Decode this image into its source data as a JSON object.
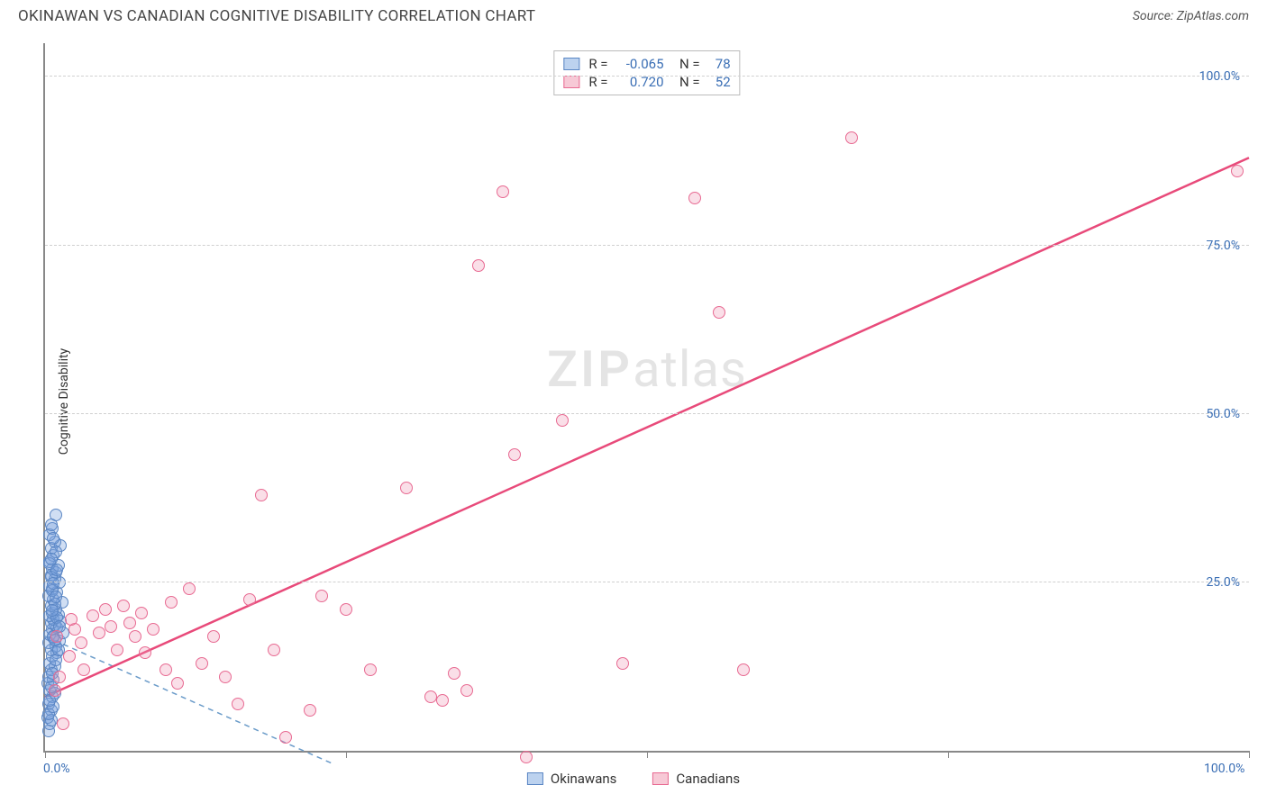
{
  "header": {
    "title": "OKINAWAN VS CANADIAN COGNITIVE DISABILITY CORRELATION CHART",
    "source": "Source: ZipAtlas.com"
  },
  "y_axis_label": "Cognitive Disability",
  "watermark": {
    "zip": "ZIP",
    "atlas": "atlas"
  },
  "chart": {
    "type": "scatter",
    "xlim": [
      0,
      100
    ],
    "ylim": [
      0,
      105
    ],
    "x_ticks": [
      0,
      25,
      50,
      75,
      100
    ],
    "y_ticks": [
      25,
      50,
      75,
      100
    ],
    "x_tick_labels": {
      "0": "0.0%",
      "100": "100.0%"
    },
    "y_tick_labels": {
      "25": "25.0%",
      "50": "50.0%",
      "75": "75.0%",
      "100": "100.0%"
    },
    "grid_color": "#d0d0d0",
    "axis_color": "#888888",
    "background_color": "#ffffff",
    "label_color": "#3b6fb5",
    "marker_radius": 7,
    "marker_border_width": 1.5,
    "series": [
      {
        "name": "Okinawans",
        "fill": "rgba(120,160,220,0.35)",
        "stroke": "#5a86c4",
        "swatch_fill": "#bcd2ef",
        "swatch_border": "#5a86c4",
        "R": "-0.065",
        "N": "78",
        "trend": {
          "x1": 0,
          "y1": 17,
          "x2": 24,
          "y2": -2,
          "color": "#6a9bc9",
          "dash": "6,5",
          "width": 1.5
        },
        "points": [
          [
            0.3,
            3
          ],
          [
            0.4,
            4
          ],
          [
            0.2,
            5
          ],
          [
            0.5,
            6
          ],
          [
            0.3,
            7
          ],
          [
            0.6,
            8
          ],
          [
            0.4,
            9
          ],
          [
            0.2,
            10
          ],
          [
            0.7,
            10.5
          ],
          [
            0.3,
            11
          ],
          [
            0.5,
            12
          ],
          [
            0.8,
            12.5
          ],
          [
            0.4,
            13
          ],
          [
            0.6,
            14
          ],
          [
            1.0,
            14.5
          ],
          [
            0.5,
            15
          ],
          [
            0.9,
            15.5
          ],
          [
            0.3,
            16
          ],
          [
            1.2,
            16.3
          ],
          [
            0.7,
            16.8
          ],
          [
            0.4,
            17.2
          ],
          [
            1.5,
            17.5
          ],
          [
            0.6,
            18
          ],
          [
            1.0,
            18.3
          ],
          [
            0.8,
            18.7
          ],
          [
            0.5,
            19
          ],
          [
            1.3,
            19.2
          ],
          [
            0.7,
            19.5
          ],
          [
            0.4,
            20
          ],
          [
            1.1,
            20.2
          ],
          [
            0.6,
            20.5
          ],
          [
            0.9,
            21
          ],
          [
            0.5,
            21.5
          ],
          [
            1.4,
            22
          ],
          [
            0.7,
            22.5
          ],
          [
            0.3,
            23
          ],
          [
            1.0,
            23.5
          ],
          [
            0.6,
            24
          ],
          [
            0.4,
            24.5
          ],
          [
            1.2,
            25
          ],
          [
            0.8,
            25.5
          ],
          [
            0.5,
            26
          ],
          [
            0.9,
            26.5
          ],
          [
            0.6,
            27
          ],
          [
            1.1,
            27.5
          ],
          [
            0.4,
            28
          ],
          [
            0.7,
            29
          ],
          [
            0.5,
            30
          ],
          [
            1.3,
            30.5
          ],
          [
            0.8,
            31
          ],
          [
            0.4,
            32
          ],
          [
            0.6,
            33
          ],
          [
            0.9,
            35
          ],
          [
            0.5,
            4.5
          ],
          [
            0.3,
            5.5
          ],
          [
            0.7,
            6.5
          ],
          [
            0.4,
            7.5
          ],
          [
            0.8,
            8.5
          ],
          [
            0.5,
            9.5
          ],
          [
            0.6,
            11.5
          ],
          [
            0.9,
            13.5
          ],
          [
            1.1,
            15
          ],
          [
            0.7,
            17
          ],
          [
            1.0,
            19.8
          ],
          [
            0.8,
            21.8
          ],
          [
            0.6,
            23.8
          ],
          [
            0.5,
            25.8
          ],
          [
            0.4,
            27.8
          ],
          [
            0.9,
            29.5
          ],
          [
            0.7,
            31.5
          ],
          [
            0.5,
            33.5
          ],
          [
            0.8,
            16.5
          ],
          [
            1.2,
            18.5
          ],
          [
            0.6,
            20.8
          ],
          [
            0.9,
            22.8
          ],
          [
            0.7,
            24.8
          ],
          [
            1.0,
            26.8
          ],
          [
            0.5,
            28.5
          ]
        ]
      },
      {
        "name": "Canadians",
        "fill": "rgba(240,150,180,0.30)",
        "stroke": "#e86a92",
        "swatch_fill": "#f7c9d6",
        "swatch_border": "#e86a92",
        "R": "0.720",
        "N": "52",
        "trend": {
          "x1": 0,
          "y1": 8,
          "x2": 100,
          "y2": 88,
          "color": "#e84a7a",
          "dash": "",
          "width": 2.5
        },
        "points": [
          [
            1,
            17
          ],
          [
            1.5,
            4
          ],
          [
            2,
            14
          ],
          [
            2.5,
            18
          ],
          [
            3,
            16
          ],
          [
            3.2,
            12
          ],
          [
            4,
            20
          ],
          [
            4.5,
            17.5
          ],
          [
            5,
            21
          ],
          [
            5.5,
            18.5
          ],
          [
            6,
            15
          ],
          [
            6.5,
            21.5
          ],
          [
            7,
            19
          ],
          [
            7.5,
            17
          ],
          [
            8,
            20.5
          ],
          [
            8.3,
            14.5
          ],
          [
            9,
            18
          ],
          [
            10,
            12
          ],
          [
            10.5,
            22
          ],
          [
            11,
            10
          ],
          [
            12,
            24
          ],
          [
            13,
            13
          ],
          [
            14,
            17
          ],
          [
            15,
            11
          ],
          [
            16,
            7
          ],
          [
            17,
            22.5
          ],
          [
            18,
            38
          ],
          [
            19,
            15
          ],
          [
            20,
            2
          ],
          [
            22,
            6
          ],
          [
            23,
            23
          ],
          [
            25,
            21
          ],
          [
            27,
            12
          ],
          [
            30,
            39
          ],
          [
            32,
            8
          ],
          [
            33,
            7.5
          ],
          [
            34,
            11.5
          ],
          [
            35,
            9
          ],
          [
            36,
            72
          ],
          [
            38,
            83
          ],
          [
            39,
            44
          ],
          [
            40,
            -1
          ],
          [
            43,
            49
          ],
          [
            48,
            13
          ],
          [
            54,
            82
          ],
          [
            56,
            65
          ],
          [
            58,
            12
          ],
          [
            67,
            91
          ],
          [
            99,
            86
          ],
          [
            0.8,
            9
          ],
          [
            1.2,
            11
          ],
          [
            2.2,
            19.5
          ]
        ]
      }
    ]
  },
  "legend": {
    "items": [
      {
        "label": "Okinawans",
        "fill": "#bcd2ef",
        "border": "#5a86c4"
      },
      {
        "label": "Canadians",
        "fill": "#f7c9d6",
        "border": "#e86a92"
      }
    ]
  }
}
